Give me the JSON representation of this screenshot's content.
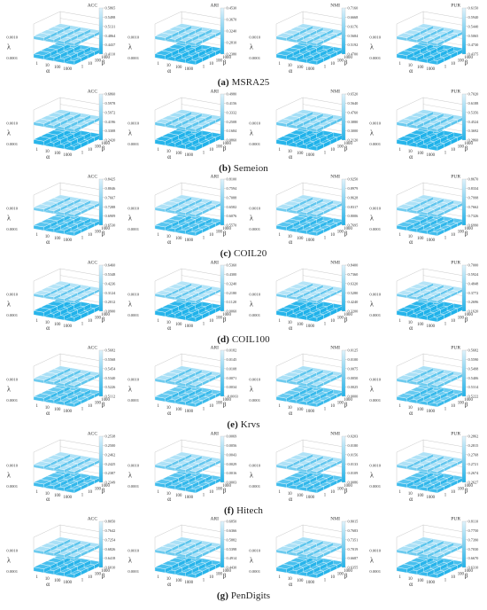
{
  "colors": {
    "surface_light": "#dff2fb",
    "surface_mid": "#8ed4f0",
    "surface_dark": "#1fb2ea",
    "grid": "#c8c8c8",
    "axis_text": "#333333"
  },
  "chart_data": [
    {
      "group": "MSRA25",
      "caption_letter": "(a)",
      "panels": [
        {
          "type": "bar3d",
          "metric": "ACC",
          "ticks": [
            "0.5865",
            "0.5498",
            "0.5131",
            "0.4864",
            "0.4437",
            "0.4110"
          ],
          "value_range": [
            0.411,
            0.5865
          ],
          "bottom_level": 0.78,
          "top_level": 0.52
        },
        {
          "type": "bar3d",
          "metric": "ARI",
          "ticks": [
            "0.4530",
            "0.3670",
            "0.3240",
            "0.2810",
            "0.2380"
          ],
          "value_range": [
            0.238,
            0.453
          ],
          "bottom_level": 0.85,
          "top_level": 0.55
        },
        {
          "type": "bar3d",
          "metric": "NMI",
          "ticks": [
            "0.7160",
            "0.6668",
            "0.6176",
            "0.5684",
            "0.5192",
            "0.4700"
          ],
          "value_range": [
            0.47,
            0.716
          ],
          "bottom_level": 0.8,
          "top_level": 0.5
        },
        {
          "type": "bar3d",
          "metric": "PUR",
          "ticks": [
            "0.6150",
            "0.5940",
            "0.5440",
            "0.5065",
            "0.4730",
            "0.4375"
          ],
          "value_range": [
            0.4375,
            0.615
          ],
          "bottom_level": 0.82,
          "top_level": 0.48
        }
      ],
      "x_axis_label": "α",
      "y_axis_label": "β",
      "z_axis_label": "λ",
      "x_ticks": [
        "1",
        "10",
        "100",
        "1000"
      ],
      "y_ticks": [
        "1",
        "10",
        "100",
        "1000"
      ],
      "z_ticks": [
        "0.0010",
        "0.0001"
      ]
    },
    {
      "group": "Semeion",
      "caption_letter": "(b)",
      "panels": [
        {
          "type": "bar3d",
          "metric": "ACC",
          "ticks": [
            "0.6860",
            "0.5978",
            "0.5972",
            "0.4196",
            "0.3308",
            "0.2420"
          ],
          "value_range": [
            0.242,
            0.686
          ],
          "bottom_level": 0.92,
          "top_level": 0.55
        },
        {
          "type": "bar3d",
          "metric": "ARI",
          "ticks": [
            "0.4980",
            "0.4156",
            "0.3332",
            "0.2508",
            "0.1684",
            "0.0860"
          ],
          "value_range": [
            0.086,
            0.498
          ],
          "bottom_level": 0.92,
          "top_level": 0.55
        },
        {
          "type": "bar3d",
          "metric": "NMI",
          "ticks": [
            "0.6520",
            "0.5640",
            "0.4760",
            "0.3880",
            "0.3000",
            "0.2120"
          ],
          "value_range": [
            0.212,
            0.652
          ],
          "bottom_level": 0.92,
          "top_level": 0.55
        },
        {
          "type": "bar3d",
          "metric": "PUR",
          "ticks": [
            "0.7020",
            "0.6188",
            "0.5356",
            "0.4524",
            "0.3692",
            "0.2860"
          ],
          "value_range": [
            0.286,
            0.702
          ],
          "bottom_level": 0.92,
          "top_level": 0.55
        }
      ],
      "x_axis_label": "α",
      "y_axis_label": "β",
      "z_axis_label": "λ",
      "x_ticks": [
        "1",
        "10",
        "100",
        "1000"
      ],
      "y_ticks": [
        "1",
        "10",
        "100",
        "1000"
      ],
      "z_ticks": [
        "0.0010",
        "0.0001"
      ]
    },
    {
      "group": "COIL20",
      "caption_letter": "(c)",
      "panels": [
        {
          "type": "bar3d",
          "metric": "ACC",
          "ticks": [
            "0.8425",
            "0.8046",
            "0.7667",
            "0.7288",
            "0.6909",
            "0.6530"
          ],
          "value_range": [
            0.653,
            0.8425
          ],
          "bottom_level": 0.7,
          "top_level": 0.45
        },
        {
          "type": "bar3d",
          "metric": "ARI",
          "ticks": [
            "0.8100",
            "0.7594",
            "0.7088",
            "0.6582",
            "0.6076",
            "0.5570"
          ],
          "value_range": [
            0.557,
            0.81
          ],
          "bottom_level": 0.7,
          "top_level": 0.45
        },
        {
          "type": "bar3d",
          "metric": "NMI",
          "ticks": [
            "0.9250",
            "0.8979",
            "0.8628",
            "0.8317",
            "0.8006",
            "0.7695"
          ],
          "value_range": [
            0.7695,
            0.925
          ],
          "bottom_level": 0.7,
          "top_level": 0.45
        },
        {
          "type": "bar3d",
          "metric": "PUR",
          "ticks": [
            "0.8670",
            "0.8334",
            "0.7998",
            "0.7662",
            "0.7326",
            "0.6990"
          ],
          "value_range": [
            0.699,
            0.867
          ],
          "bottom_level": 0.7,
          "top_level": 0.45
        }
      ],
      "x_axis_label": "α",
      "y_axis_label": "β",
      "z_axis_label": "λ",
      "x_ticks": [
        "1",
        "10",
        "100",
        "1000"
      ],
      "y_ticks": [
        "1",
        "10",
        "100",
        "1000"
      ],
      "z_ticks": [
        "0.0010",
        "0.0001"
      ]
    },
    {
      "group": "COIL100",
      "caption_letter": "(d)",
      "panels": [
        {
          "type": "bar3d",
          "metric": "ACC",
          "ticks": [
            "0.6460",
            "0.5348",
            "0.4236",
            "0.3124",
            "0.2012",
            "0.0900"
          ],
          "value_range": [
            0.09,
            0.646
          ],
          "bottom_level": 0.92,
          "top_level": 0.4
        },
        {
          "type": "bar3d",
          "metric": "ARI",
          "ticks": [
            "0.5360",
            "0.4300",
            "0.3240",
            "0.2180",
            "0.1120",
            "0.0060"
          ],
          "value_range": [
            0.006,
            0.536
          ],
          "bottom_level": 0.92,
          "top_level": 0.4
        },
        {
          "type": "bar3d",
          "metric": "NMI",
          "ticks": [
            "0.8400",
            "0.7360",
            "0.6320",
            "0.5280",
            "0.4240",
            "0.3200"
          ],
          "value_range": [
            0.32,
            0.84
          ],
          "bottom_level": 0.92,
          "top_level": 0.4
        },
        {
          "type": "bar3d",
          "metric": "PUR",
          "ticks": [
            "0.7000",
            "0.5924",
            "0.4848",
            "0.3772",
            "0.2696",
            "0.1620"
          ],
          "value_range": [
            0.162,
            0.7
          ],
          "bottom_level": 0.92,
          "top_level": 0.4
        }
      ],
      "x_axis_label": "α",
      "y_axis_label": "β",
      "z_axis_label": "λ",
      "x_ticks": [
        "1",
        "10",
        "100",
        "1000"
      ],
      "y_ticks": [
        "1",
        "10",
        "100",
        "1000"
      ],
      "z_ticks": [
        "0.0010",
        "0.0001"
      ]
    },
    {
      "group": "Krvs",
      "caption_letter": "(e)",
      "panels": [
        {
          "type": "bar3d",
          "metric": "ACC",
          "ticks": [
            "0.5682",
            "0.5568",
            "0.5454",
            "0.5340",
            "0.5226",
            "0.5112"
          ],
          "value_range": [
            0.5112,
            0.5682
          ],
          "bottom_level": 0.62,
          "top_level": 0.5
        },
        {
          "type": "bar3d",
          "metric": "ARI",
          "ticks": [
            "0.0182",
            "0.0145",
            "0.0108",
            "0.0071",
            "0.0034",
            "-0.0003"
          ],
          "value_range": [
            -0.0003,
            0.0182
          ],
          "bottom_level": 0.62,
          "top_level": 0.5
        },
        {
          "type": "bar3d",
          "metric": "NMI",
          "ticks": [
            "0.0125",
            "0.0100",
            "0.0075",
            "0.0050",
            "0.0025",
            "0.0000"
          ],
          "value_range": [
            0.0,
            0.0125
          ],
          "bottom_level": 0.62,
          "top_level": 0.5
        },
        {
          "type": "bar3d",
          "metric": "PUR",
          "ticks": [
            "0.5682",
            "0.5590",
            "0.5498",
            "0.5406",
            "0.5314",
            "0.5222"
          ],
          "value_range": [
            0.5222,
            0.5682
          ],
          "bottom_level": 0.62,
          "top_level": 0.5
        }
      ],
      "x_axis_label": "α",
      "y_axis_label": "β",
      "z_axis_label": "λ",
      "x_ticks": [
        "1",
        "10",
        "100",
        "1000"
      ],
      "y_ticks": [
        "1",
        "10",
        "100",
        "1000"
      ],
      "z_ticks": [
        "0.0010",
        "0.0001"
      ]
    },
    {
      "group": "Hitech",
      "caption_letter": "(f)",
      "panels": [
        {
          "type": "bar3d",
          "metric": "ACC",
          "ticks": [
            "0.2538",
            "0.2500",
            "0.2462",
            "0.2425",
            "0.2387",
            "0.2349"
          ],
          "value_range": [
            0.2349,
            0.2538
          ],
          "bottom_level": 0.7,
          "top_level": 0.45
        },
        {
          "type": "bar3d",
          "metric": "ARI",
          "ticks": [
            "0.0069",
            "0.0056",
            "0.0043",
            "0.0029",
            "0.0016",
            "0.0003"
          ],
          "value_range": [
            0.0003,
            0.0069
          ],
          "bottom_level": 0.7,
          "top_level": 0.45
        },
        {
          "type": "bar3d",
          "metric": "NMI",
          "ticks": [
            "0.0203",
            "0.0180",
            "0.0156",
            "0.0133",
            "0.0109",
            "0.0086"
          ],
          "value_range": [
            0.0086,
            0.0203
          ],
          "bottom_level": 0.7,
          "top_level": 0.45
        },
        {
          "type": "bar3d",
          "metric": "PUR",
          "ticks": [
            "0.2862",
            "0.2815",
            "0.2768",
            "0.2721",
            "0.2674",
            "0.2627"
          ],
          "value_range": [
            0.2627,
            0.2862
          ],
          "bottom_level": 0.7,
          "top_level": 0.45
        }
      ],
      "x_axis_label": "α",
      "y_axis_label": "β",
      "z_axis_label": "λ",
      "x_ticks": [
        "1",
        "10",
        "100",
        "1000"
      ],
      "y_ticks": [
        "1",
        "10",
        "100",
        "1000"
      ],
      "z_ticks": [
        "0.0010",
        "0.0001"
      ]
    },
    {
      "group": "PenDigits",
      "caption_letter": "(g)",
      "panels": [
        {
          "type": "bar3d",
          "metric": "ACC",
          "ticks": [
            "0.8050",
            "0.7642",
            "0.7254",
            "0.6826",
            "0.6418",
            "0.6010"
          ],
          "value_range": [
            0.601,
            0.805
          ],
          "bottom_level": 0.78,
          "top_level": 0.5
        },
        {
          "type": "bar3d",
          "metric": "ARI",
          "ticks": [
            "0.6850",
            "0.6366",
            "0.5882",
            "0.5398",
            "0.4914",
            "0.4430"
          ],
          "value_range": [
            0.443,
            0.685
          ],
          "bottom_level": 0.78,
          "top_level": 0.5
        },
        {
          "type": "bar3d",
          "metric": "NMI",
          "ticks": [
            "0.8015",
            "0.7683",
            "0.7351",
            "0.7019",
            "0.6687",
            "0.6355"
          ],
          "value_range": [
            0.6355,
            0.8015
          ],
          "bottom_level": 0.78,
          "top_level": 0.5
        },
        {
          "type": "bar3d",
          "metric": "PUR",
          "ticks": [
            "0.8110",
            "0.7750",
            "0.7390",
            "0.7030",
            "0.6670",
            "0.6310"
          ],
          "value_range": [
            0.631,
            0.811
          ],
          "bottom_level": 0.78,
          "top_level": 0.5
        }
      ],
      "x_axis_label": "α",
      "y_axis_label": "β",
      "z_axis_label": "λ",
      "x_ticks": [
        "1",
        "10",
        "100",
        "1000"
      ],
      "y_ticks": [
        "1",
        "10",
        "100",
        "1000"
      ],
      "z_ticks": [
        "0.0010",
        "0.0001"
      ]
    }
  ]
}
